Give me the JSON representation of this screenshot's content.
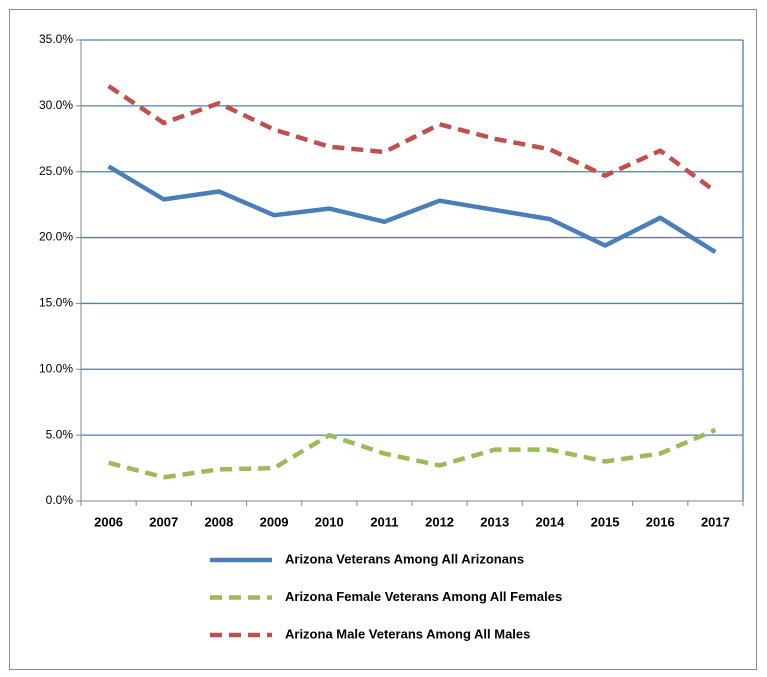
{
  "chart_data": {
    "type": "line",
    "categories": [
      "2006",
      "2007",
      "2008",
      "2009",
      "2010",
      "2011",
      "2012",
      "2013",
      "2014",
      "2015",
      "2016",
      "2017"
    ],
    "series": [
      {
        "name": "Arizona Veterans Among All Arizonans",
        "color": "#4a7ebb",
        "dash": false,
        "values": [
          25.4,
          22.9,
          23.5,
          21.7,
          22.2,
          21.2,
          22.8,
          22.1,
          21.4,
          19.4,
          21.5,
          18.9
        ]
      },
      {
        "name": "Arizona Female Veterans Among All Females",
        "color": "#9bbb59",
        "dash": true,
        "values": [
          2.9,
          1.8,
          2.4,
          2.5,
          5.0,
          3.6,
          2.7,
          3.9,
          3.9,
          3.0,
          3.6,
          5.4
        ]
      },
      {
        "name": "Arizona Male Veterans Among All Males",
        "color": "#c0504d",
        "dash": true,
        "values": [
          31.5,
          28.7,
          30.2,
          28.2,
          26.9,
          26.5,
          28.6,
          27.5,
          26.7,
          24.7,
          26.6,
          23.5
        ]
      }
    ],
    "ylim": [
      0,
      35
    ],
    "yticks": [
      {
        "value": 0,
        "label": "0.0%"
      },
      {
        "value": 5,
        "label": "5.0%"
      },
      {
        "value": 10,
        "label": "10.0%"
      },
      {
        "value": 15,
        "label": "15.0%"
      },
      {
        "value": 20,
        "label": "20.0%"
      },
      {
        "value": 25,
        "label": "25.0%"
      },
      {
        "value": 30,
        "label": "30.0%"
      },
      {
        "value": 35,
        "label": "35.0%"
      }
    ],
    "grid": true,
    "grid_color": "#4a7ebb",
    "legend": "bottom"
  }
}
